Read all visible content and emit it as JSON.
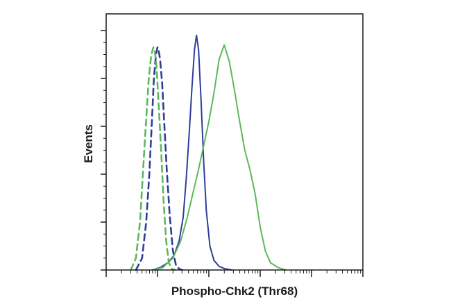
{
  "chart_data": {
    "type": "line",
    "title": "",
    "xlabel": "Phospho-Chk2 (Thr68)",
    "ylabel": "Events",
    "x_scale": "log",
    "x_range_decades": [
      0,
      5
    ],
    "ylim": [
      0,
      100
    ],
    "y_ticks_major": [
      0,
      20,
      40,
      60,
      80,
      100
    ],
    "x_tick_labels": "none",
    "y_tick_labels": "none",
    "grid": false,
    "legend": "none",
    "series": [
      {
        "color": "#2e3d9a",
        "dash": "dashed",
        "x": [
          0.58,
          0.7,
          0.78,
          0.84,
          0.89,
          0.93,
          0.97,
          1.0,
          1.02,
          1.05,
          1.09,
          1.13,
          1.18,
          1.24,
          1.3,
          1.36,
          1.42,
          1.48
        ],
        "y": [
          0,
          5,
          20,
          40,
          62,
          80,
          90,
          93,
          92,
          88,
          78,
          62,
          42,
          22,
          8,
          2,
          0.5,
          0
        ]
      },
      {
        "color": "#5cb85c",
        "dash": "dashed",
        "x": [
          0.48,
          0.58,
          0.66,
          0.72,
          0.78,
          0.83,
          0.88,
          0.92,
          0.95,
          0.98,
          1.02,
          1.07,
          1.12,
          1.17,
          1.22,
          1.28,
          1.34
        ],
        "y": [
          0,
          5,
          20,
          42,
          63,
          80,
          90,
          93,
          91,
          85,
          70,
          50,
          28,
          12,
          3,
          0.5,
          0
        ]
      },
      {
        "color": "#2e3d9a",
        "dash": "solid",
        "x": [
          0.9,
          1.05,
          1.2,
          1.32,
          1.42,
          1.5,
          1.56,
          1.62,
          1.67,
          1.72,
          1.76,
          1.8,
          1.85,
          1.9,
          1.95,
          2.02,
          2.1,
          2.2,
          2.32,
          2.45
        ],
        "y": [
          0,
          1,
          3,
          6,
          12,
          22,
          38,
          58,
          76,
          92,
          98,
          92,
          70,
          45,
          25,
          10,
          4,
          1.5,
          0.5,
          0
        ]
      },
      {
        "color": "#5cb85c",
        "dash": "solid",
        "x": [
          0.9,
          1.1,
          1.3,
          1.45,
          1.58,
          1.7,
          1.8,
          1.9,
          2.0,
          2.1,
          2.2,
          2.3,
          2.4,
          2.5,
          2.6,
          2.7,
          2.8,
          2.9,
          3.0,
          3.1,
          3.2,
          3.35,
          3.5
        ],
        "y": [
          0,
          1,
          5,
          12,
          22,
          33,
          42,
          52,
          62,
          74,
          88,
          94,
          87,
          75,
          62,
          50,
          42,
          32,
          18,
          8,
          3,
          1,
          0
        ]
      }
    ]
  }
}
